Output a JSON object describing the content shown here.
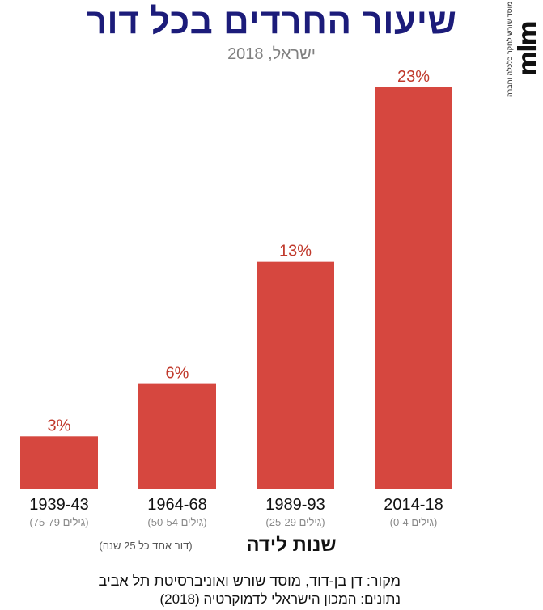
{
  "chart_data": {
    "type": "bar",
    "title": "שיעור החרדים בכל דור",
    "subtitle": "ישראל, 2018",
    "categories": [
      "1939-43",
      "1964-68",
      "1989-93",
      "2014-18"
    ],
    "category_sublabels": [
      "(גילים 75-79)",
      "(גילים 50-54)",
      "(גילים 25-29)",
      "(גילים 0-4)"
    ],
    "values": [
      3,
      6,
      13,
      23
    ],
    "value_labels": [
      "3%",
      "6%",
      "13%",
      "23%"
    ],
    "unit": "%",
    "xlabel": "שנות לידה",
    "xlabel_note": "(דור אחד כל 25 שנה)",
    "ylabel": "",
    "ylim": [
      0,
      23
    ],
    "grid": false,
    "bar_color": "#d6473f",
    "label_color": "#c0392b"
  },
  "logo": {
    "mark": "mlm",
    "tagline": "מוסד שורש לחקר כלכלה וחברה"
  },
  "footer": {
    "source": "מקור:  דן בן-דוד, מוסד שורש ואוניברסיטת תל אביב",
    "data": "נתונים: המכון הישראלי לדמוקרטיה (2018)"
  }
}
